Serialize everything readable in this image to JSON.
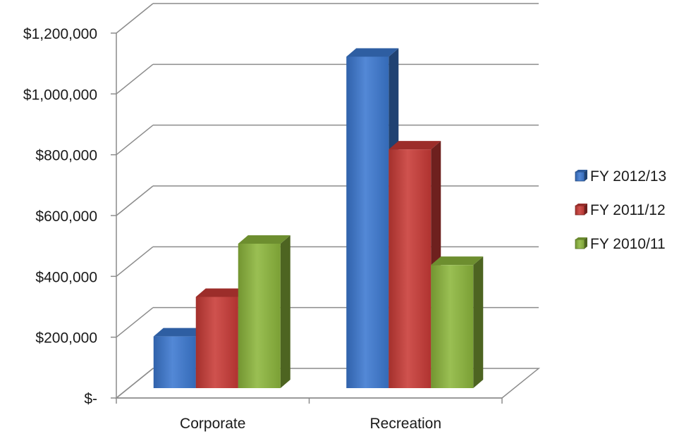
{
  "chart_data": {
    "type": "bar",
    "categories": [
      "Corporate",
      "Recreation"
    ],
    "series": [
      {
        "name": "FY 2012/13",
        "values": [
          170000,
          1090000
        ],
        "color": "#3b78d0"
      },
      {
        "name": "FY 2011/12",
        "values": [
          300000,
          785000
        ],
        "color": "#c83a36"
      },
      {
        "name": "FY 2010/11",
        "values": [
          475000,
          405000
        ],
        "color": "#8cb63c"
      }
    ],
    "y_ticks": [
      {
        "value": 0,
        "label": "$-"
      },
      {
        "value": 200000,
        "label": "$200,000"
      },
      {
        "value": 400000,
        "label": "$400,000"
      },
      {
        "value": 600000,
        "label": "$600,000"
      },
      {
        "value": 800000,
        "label": "$800,000"
      },
      {
        "value": 1000000,
        "label": "$1,000,000"
      },
      {
        "value": 1200000,
        "label": "$1,200,000"
      }
    ],
    "ylim": [
      0,
      1200000
    ],
    "grid": true,
    "legend_position": "right",
    "style": "3d-clustered-column",
    "title": "",
    "xlabel": "",
    "ylabel": ""
  }
}
